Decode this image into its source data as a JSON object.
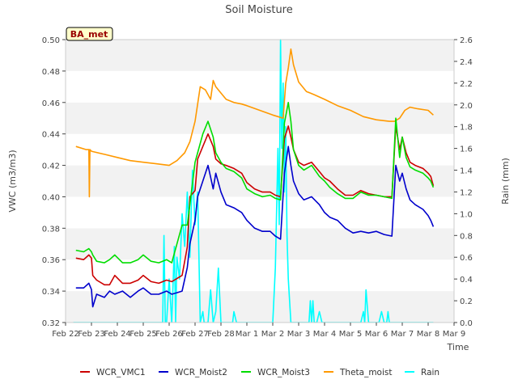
{
  "chart_data": {
    "type": "line",
    "title": "Soil Moisture",
    "xlabel": "Time",
    "ylabel": "VWC (m3/m3)",
    "y2label": "Rain (mm)",
    "site_label": "BA_met",
    "xlim": [
      0,
      15
    ],
    "ylim": [
      0.32,
      0.5
    ],
    "y2lim": [
      0.0,
      2.6
    ],
    "x_ticks": [
      0,
      1,
      2,
      3,
      4,
      5,
      6,
      7,
      8,
      9,
      10,
      11,
      12,
      13,
      14,
      15
    ],
    "x_tick_labels": [
      "Feb 22",
      "Feb 23",
      "Feb 24",
      "Feb 25",
      "Feb 26",
      "Feb 27",
      "Feb 28",
      "Mar 1",
      "Mar 2",
      "Mar 3",
      "Mar 4",
      "Mar 5",
      "Mar 6",
      "Mar 7",
      "Mar 8",
      "Mar 9"
    ],
    "y_ticks": [
      0.32,
      0.34,
      0.36,
      0.38,
      0.4,
      0.42,
      0.44,
      0.46,
      0.48,
      0.5
    ],
    "y_tick_labels": [
      "0.32",
      "0.34",
      "0.36",
      "0.38",
      "0.40",
      "0.42",
      "0.44",
      "0.46",
      "0.48",
      "0.50"
    ],
    "y2_ticks": [
      0.0,
      0.2,
      0.4,
      0.6,
      0.8,
      1.0,
      1.2,
      1.4,
      1.6,
      1.8,
      2.0,
      2.2,
      2.4,
      2.6
    ],
    "y2_tick_labels": [
      "0.0",
      "0.2",
      "0.4",
      "0.6",
      "0.8",
      "1.0",
      "1.2",
      "1.4",
      "1.6",
      "1.8",
      "2.0",
      "2.2",
      "2.4",
      "2.6"
    ],
    "grid": "horizontal bands",
    "legend_position": "bottom",
    "series": [
      {
        "name": "WCR_VMC1",
        "color": "#cc0000",
        "axis": "left",
        "x": [
          0.4,
          0.7,
          0.9,
          1.0,
          1.05,
          1.2,
          1.5,
          1.7,
          1.9,
          2.2,
          2.5,
          2.8,
          3.0,
          3.3,
          3.6,
          3.9,
          4.1,
          4.3,
          4.5,
          4.7,
          4.8,
          5.0,
          5.1,
          5.3,
          5.5,
          5.7,
          5.8,
          6.0,
          6.2,
          6.5,
          6.8,
          7.0,
          7.3,
          7.6,
          7.9,
          8.1,
          8.3,
          8.45,
          8.6,
          8.7,
          8.8,
          9.0,
          9.2,
          9.5,
          9.8,
          10.0,
          10.2,
          10.5,
          10.8,
          11.1,
          11.4,
          11.7,
          12.0,
          12.3,
          12.6,
          12.75,
          12.9,
          13.0,
          13.15,
          13.3,
          13.5,
          13.8,
          14.0,
          14.1,
          14.2
        ],
        "y": [
          0.361,
          0.36,
          0.363,
          0.361,
          0.35,
          0.347,
          0.344,
          0.344,
          0.35,
          0.345,
          0.345,
          0.347,
          0.35,
          0.346,
          0.345,
          0.347,
          0.346,
          0.348,
          0.35,
          0.368,
          0.4,
          0.404,
          0.424,
          0.432,
          0.44,
          0.432,
          0.424,
          0.421,
          0.42,
          0.418,
          0.415,
          0.409,
          0.405,
          0.403,
          0.403,
          0.401,
          0.4,
          0.437,
          0.445,
          0.438,
          0.43,
          0.422,
          0.42,
          0.422,
          0.416,
          0.412,
          0.41,
          0.405,
          0.401,
          0.401,
          0.404,
          0.402,
          0.401,
          0.4,
          0.4,
          0.445,
          0.43,
          0.438,
          0.428,
          0.422,
          0.42,
          0.418,
          0.415,
          0.413,
          0.407
        ]
      },
      {
        "name": "WCR_Moist2",
        "color": "#0000cc",
        "axis": "left",
        "x": [
          0.4,
          0.7,
          0.9,
          1.0,
          1.05,
          1.2,
          1.5,
          1.7,
          1.9,
          2.2,
          2.5,
          2.8,
          3.0,
          3.3,
          3.6,
          3.9,
          4.1,
          4.3,
          4.5,
          4.7,
          4.8,
          5.0,
          5.1,
          5.3,
          5.5,
          5.7,
          5.8,
          6.0,
          6.2,
          6.5,
          6.8,
          7.0,
          7.3,
          7.6,
          7.9,
          8.1,
          8.3,
          8.45,
          8.6,
          8.7,
          8.8,
          9.0,
          9.2,
          9.5,
          9.8,
          10.0,
          10.2,
          10.5,
          10.8,
          11.1,
          11.4,
          11.7,
          12.0,
          12.3,
          12.6,
          12.75,
          12.9,
          13.0,
          13.15,
          13.3,
          13.5,
          13.8,
          14.0,
          14.1,
          14.2
        ],
        "y": [
          0.342,
          0.342,
          0.345,
          0.341,
          0.33,
          0.338,
          0.336,
          0.34,
          0.338,
          0.34,
          0.336,
          0.34,
          0.342,
          0.338,
          0.338,
          0.34,
          0.338,
          0.339,
          0.34,
          0.355,
          0.37,
          0.385,
          0.4,
          0.41,
          0.42,
          0.405,
          0.415,
          0.403,
          0.395,
          0.393,
          0.39,
          0.385,
          0.38,
          0.378,
          0.378,
          0.375,
          0.373,
          0.415,
          0.432,
          0.42,
          0.41,
          0.402,
          0.398,
          0.4,
          0.395,
          0.39,
          0.387,
          0.385,
          0.38,
          0.377,
          0.378,
          0.377,
          0.378,
          0.376,
          0.375,
          0.42,
          0.41,
          0.415,
          0.405,
          0.398,
          0.395,
          0.392,
          0.388,
          0.385,
          0.381
        ]
      },
      {
        "name": "WCR_Moist3",
        "color": "#00dd00",
        "axis": "left",
        "x": [
          0.4,
          0.7,
          0.9,
          1.0,
          1.05,
          1.2,
          1.5,
          1.7,
          1.9,
          2.2,
          2.5,
          2.8,
          3.0,
          3.3,
          3.6,
          3.9,
          4.1,
          4.3,
          4.5,
          4.7,
          4.8,
          5.0,
          5.1,
          5.3,
          5.5,
          5.7,
          5.8,
          6.0,
          6.2,
          6.5,
          6.8,
          7.0,
          7.3,
          7.6,
          7.9,
          8.1,
          8.3,
          8.45,
          8.6,
          8.7,
          8.8,
          9.0,
          9.2,
          9.5,
          9.8,
          10.0,
          10.2,
          10.5,
          10.8,
          11.1,
          11.4,
          11.7,
          12.0,
          12.3,
          12.6,
          12.75,
          12.9,
          13.0,
          13.15,
          13.3,
          13.5,
          13.8,
          14.0,
          14.1,
          14.2
        ],
        "y": [
          0.366,
          0.365,
          0.367,
          0.365,
          0.363,
          0.359,
          0.358,
          0.36,
          0.363,
          0.358,
          0.358,
          0.36,
          0.363,
          0.359,
          0.358,
          0.36,
          0.358,
          0.37,
          0.382,
          0.382,
          0.395,
          0.422,
          0.428,
          0.44,
          0.448,
          0.438,
          0.428,
          0.422,
          0.418,
          0.416,
          0.412,
          0.405,
          0.402,
          0.4,
          0.401,
          0.399,
          0.398,
          0.447,
          0.46,
          0.448,
          0.43,
          0.42,
          0.417,
          0.42,
          0.413,
          0.41,
          0.406,
          0.402,
          0.399,
          0.399,
          0.403,
          0.401,
          0.401,
          0.4,
          0.399,
          0.45,
          0.425,
          0.438,
          0.425,
          0.419,
          0.417,
          0.415,
          0.412,
          0.41,
          0.406
        ]
      },
      {
        "name": "Theta_moist",
        "color": "#ff9900",
        "axis": "left",
        "x": [
          0.4,
          0.8,
          0.9,
          0.92,
          0.94,
          1.0,
          1.5,
          2.0,
          2.5,
          3.0,
          3.5,
          4.0,
          4.3,
          4.6,
          4.8,
          5.0,
          5.2,
          5.4,
          5.6,
          5.7,
          5.8,
          6.0,
          6.2,
          6.5,
          6.8,
          7.0,
          7.5,
          8.0,
          8.4,
          8.5,
          8.6,
          8.7,
          8.8,
          9.0,
          9.3,
          9.6,
          10.0,
          10.5,
          11.0,
          11.5,
          12.0,
          12.5,
          12.7,
          12.9,
          13.1,
          13.3,
          13.6,
          14.0,
          14.2
        ],
        "y": [
          0.432,
          0.43,
          0.43,
          0.4,
          0.43,
          0.429,
          0.427,
          0.425,
          0.423,
          0.422,
          0.421,
          0.42,
          0.423,
          0.428,
          0.435,
          0.448,
          0.47,
          0.468,
          0.462,
          0.474,
          0.47,
          0.466,
          0.462,
          0.46,
          0.459,
          0.458,
          0.455,
          0.452,
          0.45,
          0.472,
          0.482,
          0.494,
          0.484,
          0.473,
          0.467,
          0.465,
          0.462,
          0.458,
          0.455,
          0.451,
          0.449,
          0.448,
          0.448,
          0.45,
          0.455,
          0.457,
          0.456,
          0.455,
          0.452
        ]
      },
      {
        "name": "Rain",
        "color": "#00ffff",
        "axis": "right",
        "x": [
          0.3,
          3.75,
          3.8,
          3.85,
          3.9,
          4.0,
          4.1,
          4.2,
          4.25,
          4.3,
          4.4,
          4.5,
          4.6,
          4.7,
          4.8,
          4.9,
          5.0,
          5.1,
          5.2,
          5.3,
          5.35,
          5.4,
          5.5,
          5.6,
          5.7,
          5.8,
          5.9,
          6.0,
          6.1,
          6.2,
          6.4,
          6.45,
          6.5,
          6.6,
          6.7,
          6.8,
          7.0,
          7.05,
          7.1,
          8.0,
          8.1,
          8.2,
          8.25,
          8.3,
          8.35,
          8.4,
          8.45,
          8.5,
          8.55,
          8.6,
          8.65,
          8.7,
          8.8,
          8.9,
          9.2,
          9.4,
          9.45,
          9.5,
          9.55,
          9.6,
          9.7,
          9.8,
          9.9,
          10.0,
          10.1,
          10.5,
          11.4,
          11.5,
          11.55,
          11.6,
          11.7,
          11.9,
          12.0,
          12.05,
          12.1,
          12.2,
          12.3,
          12.4,
          12.45,
          12.5,
          12.6,
          12.7,
          12.75,
          12.8,
          12.85,
          12.9,
          12.95,
          13.0,
          13.05,
          13.1,
          13.15,
          13.2,
          13.25,
          13.3,
          13.4,
          13.5,
          13.6,
          13.7,
          13.8,
          14.0,
          14.2
        ],
        "y": [
          0.0,
          0.0,
          0.8,
          0.0,
          0.0,
          0.4,
          0.0,
          0.7,
          0.0,
          0.6,
          0.4,
          1.0,
          0.7,
          1.2,
          0.6,
          1.4,
          0.9,
          1.2,
          0.0,
          0.1,
          0.0,
          0.0,
          0.0,
          0.3,
          0.0,
          0.1,
          0.5,
          0.0,
          0.0,
          0.0,
          0.0,
          0.0,
          0.1,
          0.0,
          0.0,
          0.0,
          0.0,
          0.0,
          0.0,
          0.0,
          0.5,
          1.6,
          0.9,
          2.6,
          1.6,
          2.2,
          1.2,
          1.8,
          0.8,
          0.4,
          0.2,
          0.0,
          0.0,
          0.0,
          0.0,
          0.0,
          0.2,
          0.0,
          0.2,
          0.0,
          0.0,
          0.1,
          0.0,
          0.0,
          0.0,
          0.0,
          0.0,
          0.1,
          0.0,
          0.3,
          0.0,
          0.0,
          0.0,
          0.0,
          0.0,
          0.1,
          0.0,
          0.0,
          0.1,
          0.0,
          0.0,
          0.0,
          0.0,
          0.0,
          0.0,
          0.0,
          0.0,
          0.0,
          0.0,
          0.0,
          0.0,
          0.0,
          0.0,
          0.0,
          0.0,
          0.0,
          0.0,
          0.0,
          0.0,
          0.0,
          0.0
        ]
      }
    ]
  }
}
